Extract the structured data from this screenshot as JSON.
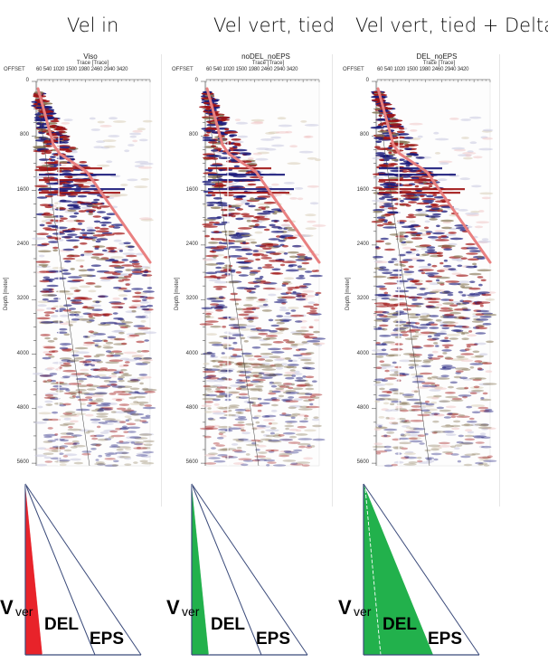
{
  "columns": [
    {
      "title": "Vel in",
      "panel_title": "Viso",
      "fill_color": "#e8232a",
      "fill_region": "vver"
    },
    {
      "title": "Vel vert, tied",
      "panel_title": "noDEL_noEPS",
      "fill_color": "#22b14c",
      "fill_region": "vver"
    },
    {
      "title": "Vel vert, tied + Delta",
      "panel_title": "DEL_noEPS",
      "fill_color": "#22b14c",
      "fill_region": "del"
    }
  ],
  "axes": {
    "x_label": "Trace [Trace]",
    "offset_label": "OFFSET",
    "x_ticks": [
      "60",
      "540",
      "1020",
      "1500",
      "1980",
      "2460",
      "2940",
      "3420"
    ],
    "y_label": "Depth [meter]",
    "y_ticks": [
      "0",
      "800",
      "1600",
      "2400",
      "3200",
      "4000",
      "4800",
      "5600"
    ]
  },
  "triangle_labels": {
    "vver_main": "V",
    "vver_sub": "ver",
    "del": "DEL",
    "eps": "EPS"
  },
  "colors": {
    "first_break_line": "#e98080",
    "seis_red": "#a01414",
    "seis_blue": "#1a1a7a",
    "seis_brown": "#8a7a5a",
    "triangle_stroke": "#3a4a7a"
  }
}
